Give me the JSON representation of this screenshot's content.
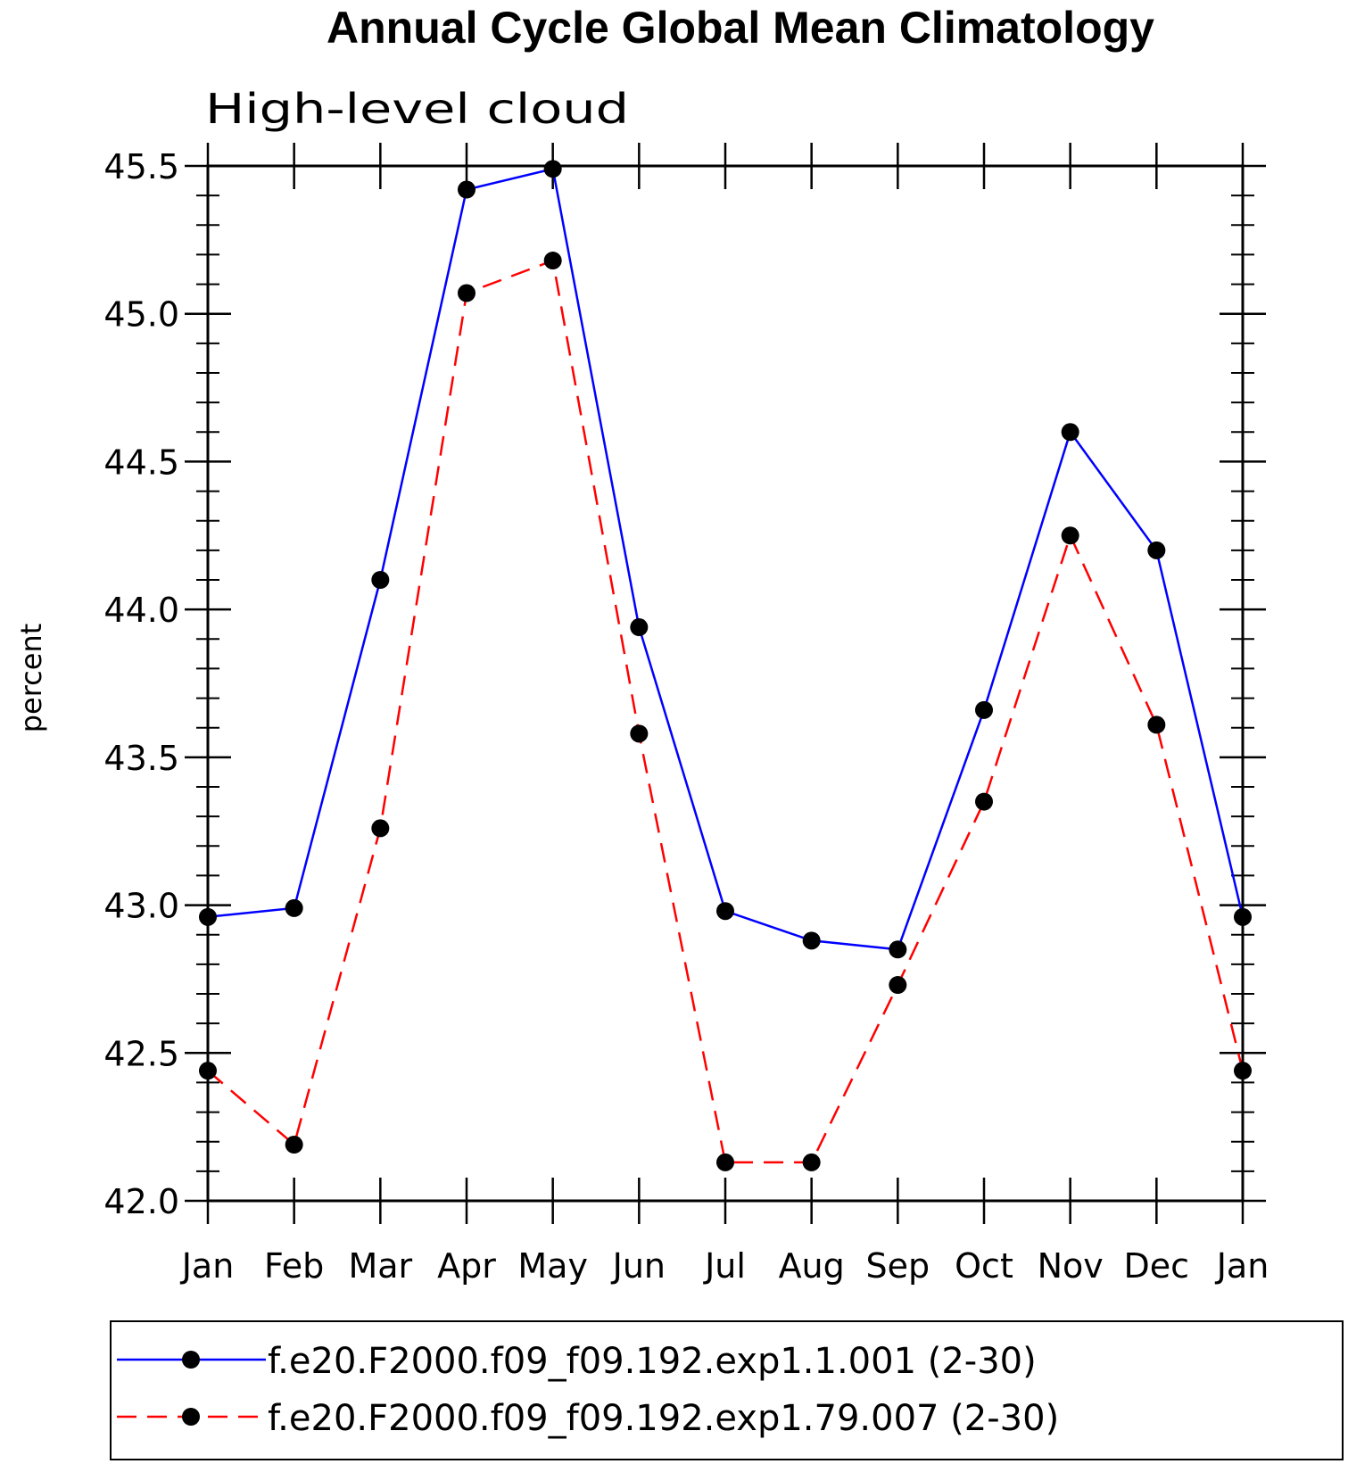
{
  "chart_data": {
    "type": "line",
    "title": "Annual Cycle Global Mean Climatology",
    "subtitle": "High-level cloud",
    "ylabel": "percent",
    "xlabel": "",
    "categories": [
      "Jan",
      "Feb",
      "Mar",
      "Apr",
      "May",
      "Jun",
      "Jul",
      "Aug",
      "Sep",
      "Oct",
      "Nov",
      "Dec",
      "Jan"
    ],
    "ylim": [
      42.0,
      45.5
    ],
    "yticks": [
      "42.0",
      "42.5",
      "43.0",
      "43.5",
      "44.0",
      "44.5",
      "45.0",
      "45.5"
    ],
    "y_minor_step": 0.1,
    "grid": false,
    "legend_position": "bottom",
    "series": [
      {
        "name": "f.e20.F2000.f09_f09.192.exp1.1.001 (2-30)",
        "color": "#0000ff",
        "dash": "solid",
        "marker": "circle",
        "values": [
          42.96,
          42.99,
          44.1,
          45.42,
          45.49,
          43.94,
          42.98,
          42.88,
          42.85,
          43.66,
          44.6,
          44.2,
          42.96
        ]
      },
      {
        "name": "f.e20.F2000.f09_f09.192.exp1.79.007 (2-30)",
        "color": "#ff0000",
        "dash": "dashed",
        "marker": "circle",
        "values": [
          42.44,
          42.19,
          43.26,
          45.07,
          45.18,
          43.58,
          42.13,
          42.13,
          42.73,
          43.35,
          44.25,
          43.61,
          42.44
        ]
      }
    ]
  }
}
